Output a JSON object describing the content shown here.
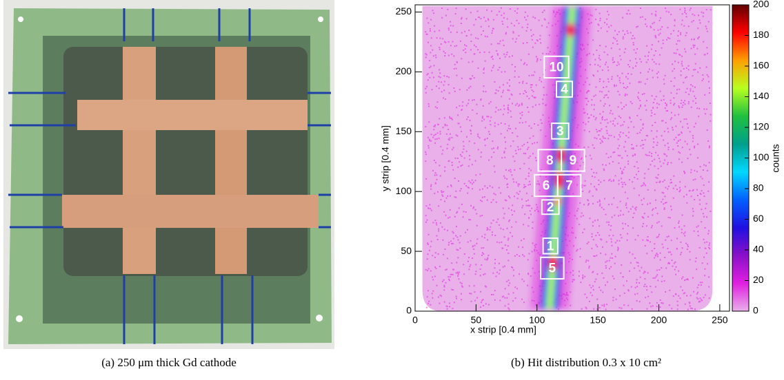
{
  "captions": [
    "(a) 250 μm thick Gd cathode",
    "(b) Hit distribution 0.3 x 10 cm²"
  ],
  "chart_data": {
    "type": "heatmap",
    "xlabel": "x strip [0.4 mm]",
    "ylabel": "y strip [0.4 mm]",
    "zlabel": "counts",
    "xlim": [
      0,
      258
    ],
    "ylim": [
      0,
      256
    ],
    "zlim": [
      0,
      200
    ],
    "xticks": [
      0,
      50,
      100,
      150,
      200,
      250
    ],
    "yticks": [
      0,
      50,
      100,
      150,
      200,
      250
    ],
    "zticks": [
      0,
      20,
      40,
      60,
      80,
      100,
      120,
      140,
      160,
      180,
      200
    ],
    "colors": [
      "#e9b0ea",
      "#e020e0",
      "#8a10c8",
      "#2010e0",
      "#0060ff",
      "#00d8ff",
      "#00a08c",
      "#20c040",
      "#b8ff20",
      "#ffa000",
      "#ff0000",
      "#600000"
    ],
    "regions": [
      "10",
      "4",
      "3",
      "8",
      "9",
      "6",
      "7",
      "2",
      "1",
      "5"
    ]
  }
}
